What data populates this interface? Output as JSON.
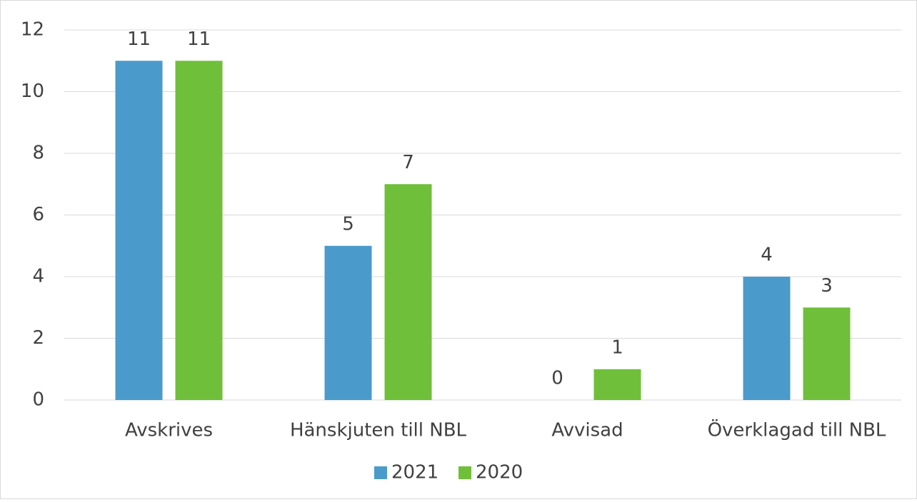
{
  "chart_data": {
    "type": "bar",
    "categories": [
      "Avskrives",
      "Hänskjuten till NBL",
      "Avvisad",
      "Överklagad till NBL"
    ],
    "series": [
      {
        "name": "2021",
        "color": "#4a9bcb",
        "values": [
          11,
          5,
          0,
          4
        ]
      },
      {
        "name": "2020",
        "color": "#70bf3a",
        "values": [
          11,
          7,
          1,
          3
        ]
      }
    ],
    "ylim": [
      0,
      12
    ],
    "yticks": [
      0,
      2,
      4,
      6,
      8,
      10,
      12
    ],
    "grid": true,
    "legend": "bottom"
  }
}
